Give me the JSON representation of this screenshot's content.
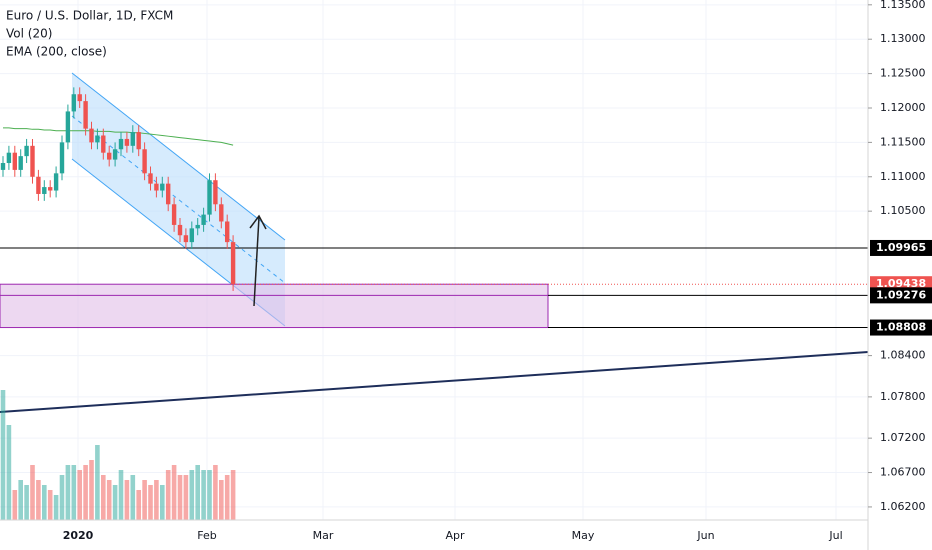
{
  "chart_data": {
    "type": "candlestick",
    "title": "Euro / U.S. Dollar, 1D, FXCM",
    "indicators": [
      "Vol (20)",
      "EMA (200, close)"
    ],
    "open": [
      1.111,
      1.112,
      1.1135,
      1.111,
      1.113,
      1.1145,
      1.11,
      1.1075,
      1.1085,
      1.108,
      1.1105,
      1.115,
      1.1195,
      1.122,
      1.121,
      1.117,
      1.115,
      1.116,
      1.1135,
      1.1125,
      1.114,
      1.1155,
      1.1145,
      1.1165,
      1.114,
      1.1105,
      1.109,
      1.108,
      1.109,
      1.106,
      1.103,
      1.1015,
      1.1005,
      1.1025,
      1.103,
      1.1045,
      1.1095,
      1.106,
      1.1035,
      1.1005
    ],
    "high": [
      1.113,
      1.1145,
      1.1145,
      1.114,
      1.1155,
      1.1155,
      1.111,
      1.1095,
      1.1095,
      1.1115,
      1.116,
      1.1205,
      1.123,
      1.123,
      1.122,
      1.118,
      1.117,
      1.117,
      1.1145,
      1.115,
      1.1165,
      1.1165,
      1.1175,
      1.1175,
      1.115,
      1.1115,
      1.11,
      1.11,
      1.11,
      1.107,
      1.104,
      1.1025,
      1.1035,
      1.104,
      1.1055,
      1.1105,
      1.1105,
      1.107,
      1.1045,
      1.1015
    ],
    "low": [
      1.11,
      1.111,
      1.11,
      1.11,
      1.112,
      1.109,
      1.1065,
      1.1065,
      1.107,
      1.107,
      1.1095,
      1.114,
      1.1185,
      1.12,
      1.116,
      1.114,
      1.114,
      1.1125,
      1.1115,
      1.1115,
      1.113,
      1.1135,
      1.1135,
      1.113,
      1.1095,
      1.108,
      1.107,
      1.107,
      1.105,
      1.102,
      1.1005,
      1.0995,
      1.0995,
      1.1015,
      1.102,
      1.1035,
      1.105,
      1.1025,
      1.0995,
      1.0934
    ],
    "close": [
      1.112,
      1.1135,
      1.111,
      1.113,
      1.1145,
      1.11,
      1.1075,
      1.1085,
      1.108,
      1.1105,
      1.115,
      1.1195,
      1.122,
      1.121,
      1.117,
      1.115,
      1.116,
      1.1135,
      1.1125,
      1.114,
      1.1155,
      1.1145,
      1.1165,
      1.114,
      1.1105,
      1.109,
      1.108,
      1.109,
      1.106,
      1.103,
      1.1015,
      1.1005,
      1.1025,
      1.103,
      1.1045,
      1.1095,
      1.106,
      1.1035,
      1.1005,
      1.0944
    ],
    "volume": [
      130,
      95,
      30,
      40,
      35,
      55,
      40,
      35,
      30,
      25,
      45,
      55,
      55,
      50,
      55,
      60,
      75,
      45,
      40,
      35,
      50,
      40,
      45,
      30,
      40,
      35,
      40,
      35,
      50,
      55,
      45,
      45,
      50,
      55,
      50,
      50,
      55,
      40,
      45,
      50
    ],
    "ema": [
      1.1171,
      1.1171,
      1.117,
      1.117,
      1.117,
      1.1169,
      1.1169,
      1.1168,
      1.1168,
      1.1167,
      1.1167,
      1.1167,
      1.1167,
      1.1167,
      1.1167,
      1.1167,
      1.1166,
      1.1166,
      1.1166,
      1.1165,
      1.1165,
      1.1165,
      1.1164,
      1.1164,
      1.1163,
      1.1162,
      1.1161,
      1.116,
      1.1159,
      1.1158,
      1.1157,
      1.1156,
      1.1155,
      1.1154,
      1.1153,
      1.1152,
      1.1151,
      1.115,
      1.1148,
      1.1146
    ],
    "up_color": "#26a69a",
    "down_color": "#ef5350",
    "ema_color": "#4caf50",
    "time_labels": [
      "2020",
      "Feb",
      "Mar",
      "Apr",
      "May",
      "Jun",
      "Jul"
    ],
    "ylim": [
      1.0601,
      1.1357
    ],
    "yticks": [
      {
        "value": 1.135,
        "label": "1.13500"
      },
      {
        "value": 1.13,
        "label": "1.13000"
      },
      {
        "value": 1.125,
        "label": "1.12500"
      },
      {
        "value": 1.12,
        "label": "1.12000"
      },
      {
        "value": 1.115,
        "label": "1.11500"
      },
      {
        "value": 1.11,
        "label": "1.11000"
      },
      {
        "value": 1.105,
        "label": "1.10500"
      },
      {
        "value": 1.084,
        "label": "1.08400"
      },
      {
        "value": 1.078,
        "label": "1.07800"
      },
      {
        "value": 1.072,
        "label": "1.07200"
      },
      {
        "value": 1.067,
        "label": "1.06700"
      },
      {
        "value": 1.062,
        "label": "1.06200"
      }
    ],
    "price_tags": [
      {
        "value": 1.09965,
        "color": "#000000"
      },
      {
        "value": 1.09438,
        "color": "#ef5350"
      },
      {
        "value": 1.09276,
        "color": "#000000"
      },
      {
        "value": 1.08808,
        "color": "#000000"
      }
    ]
  }
}
